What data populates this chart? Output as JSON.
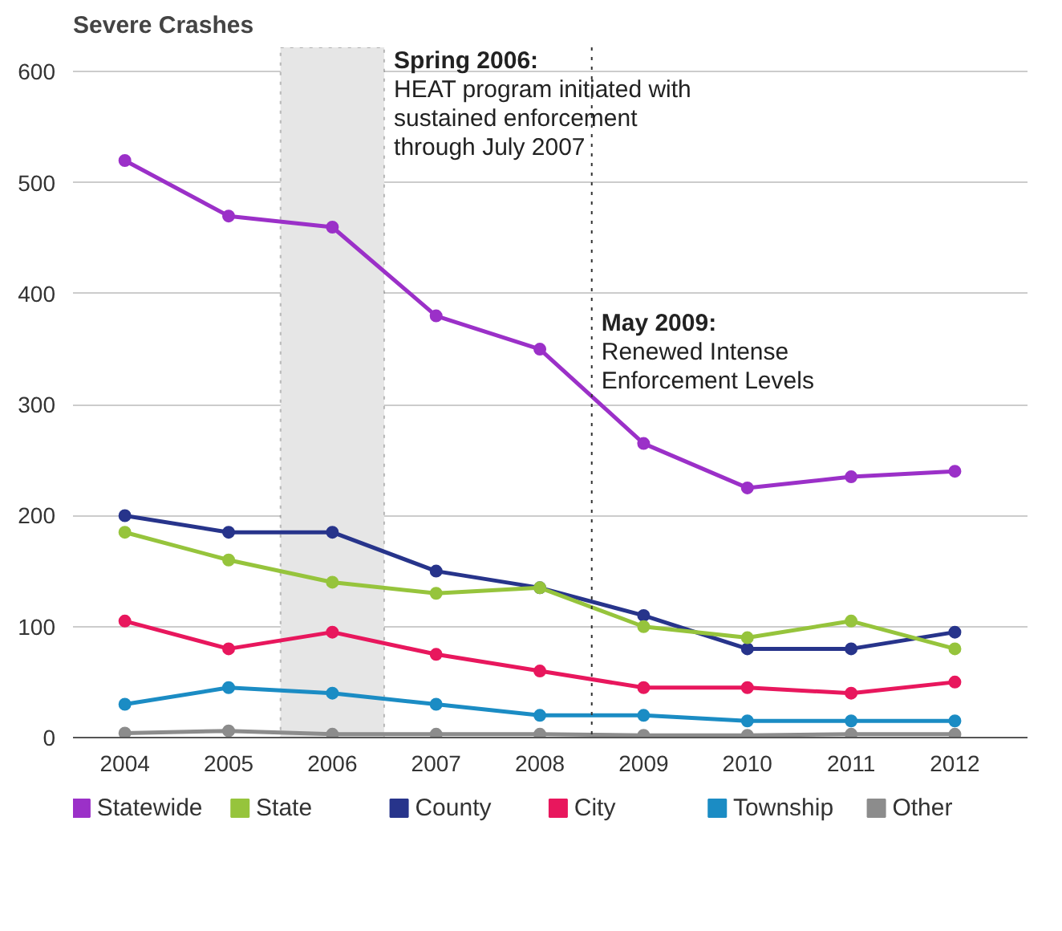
{
  "chart_data": {
    "type": "line",
    "title": "Severe Crashes",
    "x": [
      2004,
      2005,
      2006,
      2007,
      2008,
      2009,
      2010,
      2011,
      2012
    ],
    "series": [
      {
        "name": "Statewide",
        "color": "#9b30c8",
        "values": [
          520,
          470,
          460,
          380,
          350,
          265,
          225,
          235,
          240
        ]
      },
      {
        "name": "State",
        "color": "#96c43c",
        "values": [
          185,
          160,
          140,
          130,
          135,
          100,
          90,
          105,
          80
        ]
      },
      {
        "name": "County",
        "color": "#27348b",
        "values": [
          200,
          185,
          185,
          150,
          135,
          110,
          80,
          80,
          95
        ]
      },
      {
        "name": "City",
        "color": "#e8175d",
        "values": [
          105,
          80,
          95,
          75,
          60,
          45,
          45,
          40,
          50
        ]
      },
      {
        "name": "Township",
        "color": "#1b8cc4",
        "values": [
          30,
          45,
          40,
          30,
          20,
          20,
          15,
          15,
          15
        ]
      },
      {
        "name": "Other",
        "color": "#8c8c8c",
        "values": [
          4,
          6,
          3,
          3,
          3,
          2,
          2,
          3,
          3
        ]
      }
    ],
    "xlim": [
      2003.5,
      2012.7
    ],
    "ylim": [
      0,
      622
    ],
    "xticks": [
      2004,
      2005,
      2006,
      2007,
      2008,
      2009,
      2010,
      2011,
      2012
    ],
    "yticks": [
      0,
      100,
      200,
      300,
      400,
      500,
      600
    ],
    "grid": "y",
    "legend": "bottom",
    "marker": "circle",
    "line_style": "solid",
    "bands": [
      {
        "axis": "x",
        "from": 2005.5,
        "to": 2006.5,
        "label": "Spring 2006:\nHEAT program initiated with\nsustained enforcement\nthrough July 2007",
        "color": "#e6e6e6"
      }
    ],
    "ref_lines": [
      {
        "axis": "x",
        "value": 2008.5,
        "label": "May 2009:\nRenewed Intense\nEnforcement Levels",
        "line_style": "dotted"
      }
    ]
  }
}
